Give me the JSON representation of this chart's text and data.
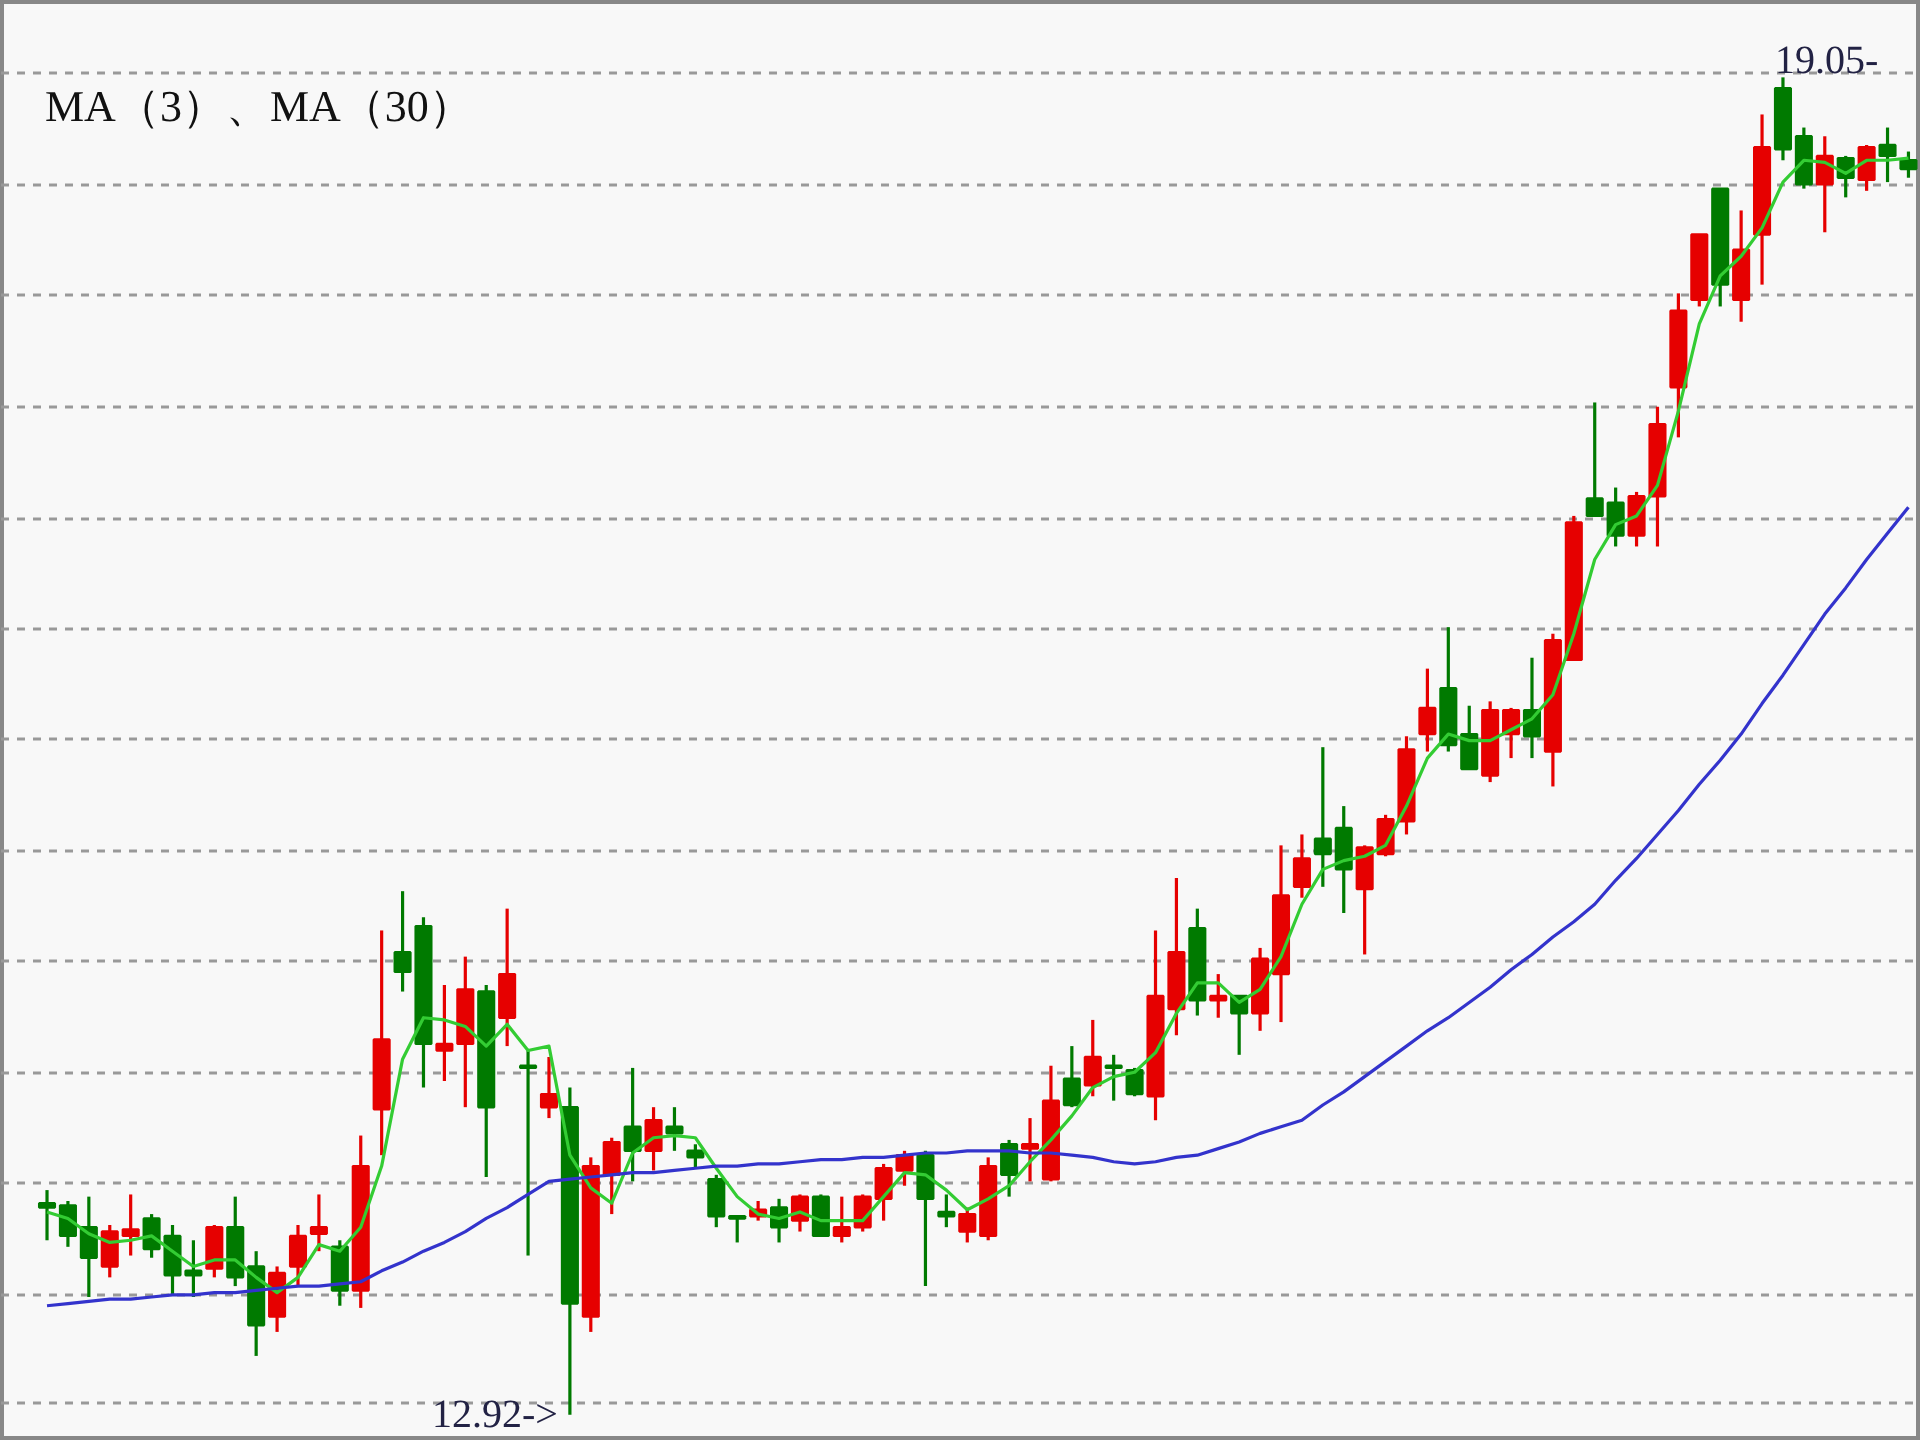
{
  "chart_data": {
    "type": "candlestick",
    "title": "MA（3）、MA（30）",
    "categories": [
      null,
      null,
      null,
      null,
      null,
      null,
      null,
      null,
      null,
      null,
      null,
      null,
      null,
      null,
      null,
      null,
      null,
      null,
      null,
      null,
      null,
      null,
      null,
      null,
      null,
      null,
      null,
      null,
      null,
      null,
      null,
      null,
      null,
      null,
      null,
      null,
      null,
      null,
      null,
      null,
      null,
      null,
      null,
      null,
      null,
      null,
      null,
      null,
      null,
      null,
      null,
      null,
      null,
      null,
      null,
      null,
      null,
      null,
      null,
      null,
      null,
      null,
      null,
      null,
      null,
      null,
      null,
      null,
      null,
      null,
      null,
      null,
      null,
      null,
      null,
      null,
      null,
      null,
      null,
      null,
      null,
      null,
      null,
      null,
      null,
      null,
      null,
      null,
      null,
      null
    ],
    "ohlc": [
      [
        13.89,
        13.95,
        13.72,
        13.87
      ],
      [
        13.88,
        13.9,
        13.69,
        13.74
      ],
      [
        13.78,
        13.92,
        13.46,
        13.64
      ],
      [
        13.6,
        13.79,
        13.55,
        13.76
      ],
      [
        13.74,
        13.93,
        13.65,
        13.77
      ],
      [
        13.82,
        13.84,
        13.64,
        13.68
      ],
      [
        13.74,
        13.79,
        13.47,
        13.56
      ],
      [
        13.58,
        13.72,
        13.46,
        13.56
      ],
      [
        13.59,
        13.79,
        13.55,
        13.78
      ],
      [
        13.78,
        13.92,
        13.51,
        13.55
      ],
      [
        13.6,
        13.67,
        13.19,
        13.33
      ],
      [
        13.37,
        13.6,
        13.3,
        13.57
      ],
      [
        13.6,
        13.79,
        13.51,
        13.74
      ],
      [
        13.75,
        13.93,
        13.67,
        13.78
      ],
      [
        13.69,
        13.72,
        13.42,
        13.49
      ],
      [
        13.49,
        14.2,
        13.41,
        14.06
      ],
      [
        14.32,
        15.14,
        14.11,
        14.64
      ],
      [
        15.04,
        15.32,
        14.86,
        14.95
      ],
      [
        15.16,
        15.2,
        14.42,
        14.62
      ],
      [
        14.59,
        14.89,
        14.45,
        14.62
      ],
      [
        14.62,
        15.02,
        14.33,
        14.87
      ],
      [
        14.86,
        14.89,
        14.01,
        14.33
      ],
      [
        14.74,
        15.24,
        14.61,
        14.94
      ],
      [
        14.52,
        14.59,
        13.65,
        14.51
      ],
      [
        14.33,
        14.56,
        14.28,
        14.39
      ],
      [
        14.33,
        14.42,
        12.92,
        13.43
      ],
      [
        13.37,
        14.1,
        13.3,
        14.06
      ],
      [
        14.02,
        14.19,
        13.84,
        14.17
      ],
      [
        14.24,
        14.51,
        13.99,
        14.13
      ],
      [
        14.13,
        14.33,
        14.04,
        14.27
      ],
      [
        14.24,
        14.33,
        14.13,
        14.21
      ],
      [
        14.13,
        14.16,
        14.05,
        14.1
      ],
      [
        14.0,
        14.02,
        13.78,
        13.83
      ],
      [
        13.83,
        13.83,
        13.71,
        13.82
      ],
      [
        13.83,
        13.9,
        13.81,
        13.86
      ],
      [
        13.87,
        13.91,
        13.71,
        13.78
      ],
      [
        13.81,
        13.93,
        13.76,
        13.92
      ],
      [
        13.92,
        13.93,
        13.74,
        13.74
      ],
      [
        13.74,
        13.92,
        13.71,
        13.78
      ],
      [
        13.78,
        13.93,
        13.76,
        13.92
      ],
      [
        13.91,
        14.07,
        13.81,
        14.05
      ],
      [
        14.04,
        14.13,
        13.97,
        14.11
      ],
      [
        14.11,
        14.13,
        13.51,
        13.91
      ],
      [
        13.85,
        13.93,
        13.78,
        13.83
      ],
      [
        13.76,
        13.87,
        13.71,
        13.84
      ],
      [
        13.74,
        14.1,
        13.72,
        14.06
      ],
      [
        14.16,
        14.18,
        13.92,
        14.02
      ],
      [
        14.14,
        14.28,
        13.99,
        14.16
      ],
      [
        14.0,
        14.52,
        13.99,
        14.36
      ],
      [
        14.46,
        14.61,
        14.33,
        14.34
      ],
      [
        14.43,
        14.73,
        14.38,
        14.56
      ],
      [
        14.52,
        14.57,
        14.36,
        14.51
      ],
      [
        14.5,
        14.51,
        14.38,
        14.39
      ],
      [
        14.38,
        15.14,
        14.27,
        14.84
      ],
      [
        14.78,
        15.38,
        14.66,
        15.04
      ],
      [
        15.15,
        15.24,
        14.75,
        14.82
      ],
      [
        14.82,
        14.94,
        14.74,
        14.84
      ],
      [
        14.84,
        14.84,
        14.57,
        14.76
      ],
      [
        14.76,
        15.06,
        14.68,
        15.01
      ],
      [
        14.94,
        15.53,
        14.72,
        15.3
      ],
      [
        15.34,
        15.58,
        15.29,
        15.47
      ],
      [
        15.56,
        15.98,
        15.34,
        15.49
      ],
      [
        15.61,
        15.71,
        15.22,
        15.42
      ],
      [
        15.33,
        15.53,
        15.03,
        15.52
      ],
      [
        15.49,
        15.67,
        15.48,
        15.65
      ],
      [
        15.64,
        16.03,
        15.58,
        15.97
      ],
      [
        16.04,
        16.34,
        15.96,
        16.16
      ],
      [
        16.25,
        16.53,
        15.96,
        15.99
      ],
      [
        16.04,
        16.17,
        15.88,
        15.88
      ],
      [
        15.85,
        16.19,
        15.82,
        16.15
      ],
      [
        16.04,
        16.16,
        15.93,
        16.15
      ],
      [
        16.15,
        16.39,
        15.93,
        16.03
      ],
      [
        15.96,
        16.5,
        15.8,
        16.47
      ],
      [
        16.38,
        17.04,
        16.38,
        17.01
      ],
      [
        17.12,
        17.56,
        17.04,
        17.04
      ],
      [
        17.1,
        17.17,
        16.9,
        16.95
      ],
      [
        16.95,
        17.15,
        16.9,
        17.13
      ],
      [
        17.13,
        17.54,
        16.9,
        17.46
      ],
      [
        17.63,
        18.06,
        17.4,
        17.98
      ],
      [
        18.03,
        18.33,
        18.0,
        18.33
      ],
      [
        18.54,
        18.54,
        18.0,
        18.1
      ],
      [
        18.03,
        18.44,
        17.93,
        18.26
      ],
      [
        18.33,
        18.88,
        18.1,
        18.73
      ],
      [
        19.0,
        19.05,
        18.67,
        18.72
      ],
      [
        18.78,
        18.82,
        18.54,
        18.56
      ],
      [
        18.56,
        18.78,
        18.34,
        18.69
      ],
      [
        18.68,
        18.69,
        18.5,
        18.59
      ],
      [
        18.58,
        18.74,
        18.53,
        18.73
      ],
      [
        18.74,
        18.82,
        18.57,
        18.69
      ],
      [
        18.67,
        18.71,
        18.59,
        18.63
      ]
    ],
    "colors": [
      "#007a00",
      "#007a00",
      "#007a00",
      "#e60000",
      "#e60000",
      "#007a00",
      "#007a00",
      "#007a00",
      "#e60000",
      "#007a00",
      "#007a00",
      "#e60000",
      "#e60000",
      "#e60000",
      "#007a00",
      "#e60000",
      "#e60000",
      "#007a00",
      "#007a00",
      "#e60000",
      "#e60000",
      "#007a00",
      "#e60000",
      "#007a00",
      "#e60000",
      "#007a00",
      "#e60000",
      "#e60000",
      "#007a00",
      "#e60000",
      "#007a00",
      "#007a00",
      "#007a00",
      "#007a00",
      "#e60000",
      "#007a00",
      "#e60000",
      "#007a00",
      "#e60000",
      "#e60000",
      "#e60000",
      "#e60000",
      "#007a00",
      "#007a00",
      "#e60000",
      "#e60000",
      "#007a00",
      "#e60000",
      "#e60000",
      "#007a00",
      "#e60000",
      "#007a00",
      "#007a00",
      "#e60000",
      "#e60000",
      "#007a00",
      "#e60000",
      "#007a00",
      "#e60000",
      "#e60000",
      "#e60000",
      "#007a00",
      "#007a00",
      "#e60000",
      "#e60000",
      "#e60000",
      "#e60000",
      "#007a00",
      "#007a00",
      "#e60000",
      "#e60000",
      "#007a00",
      "#e60000",
      "#e60000",
      "#007a00",
      "#007a00",
      "#e60000",
      "#e60000",
      "#e60000",
      "#e60000",
      "#007a00",
      "#e60000",
      "#e60000",
      "#007a00",
      "#007a00",
      "#e60000",
      "#007a00",
      "#e60000",
      "#007a00",
      "#007a00"
    ],
    "series": [
      {
        "type": "line",
        "color": "#33cc33",
        "values": [
          13.85,
          13.82,
          13.75,
          13.71,
          13.72,
          13.74,
          13.67,
          13.6,
          13.63,
          13.63,
          13.55,
          13.48,
          13.55,
          13.7,
          13.67,
          13.78,
          14.06,
          14.55,
          14.74,
          14.73,
          14.7,
          14.61,
          14.71,
          14.59,
          14.61,
          14.11,
          13.96,
          13.89,
          14.12,
          14.19,
          14.2,
          14.19,
          14.05,
          13.92,
          13.84,
          13.82,
          13.85,
          13.81,
          13.81,
          13.81,
          13.92,
          14.03,
          14.02,
          13.95,
          13.86,
          13.91,
          13.97,
          14.08,
          14.18,
          14.29,
          14.42,
          14.47,
          14.49,
          14.58,
          14.76,
          14.9,
          14.9,
          14.81,
          14.87,
          15.02,
          15.26,
          15.42,
          15.46,
          15.48,
          15.53,
          15.71,
          15.93,
          16.04,
          16.01,
          16.01,
          16.06,
          16.11,
          16.22,
          16.5,
          16.84,
          17.0,
          17.04,
          17.18,
          17.52,
          17.92,
          18.14,
          18.23,
          18.36,
          18.57,
          18.67,
          18.66,
          18.61,
          18.67,
          18.67,
          18.68
        ]
      },
      {
        "type": "line",
        "color": "#3333cc",
        "values": [
          13.42,
          13.43,
          13.44,
          13.45,
          13.45,
          13.46,
          13.47,
          13.47,
          13.48,
          13.48,
          13.49,
          13.5,
          13.51,
          13.51,
          13.52,
          13.53,
          13.58,
          13.62,
          13.67,
          13.71,
          13.76,
          13.82,
          13.87,
          13.93,
          13.99,
          14.0,
          14.01,
          14.02,
          14.03,
          14.03,
          14.04,
          14.05,
          14.06,
          14.06,
          14.07,
          14.07,
          14.08,
          14.09,
          14.09,
          14.1,
          14.1,
          14.11,
          14.12,
          14.12,
          14.13,
          14.13,
          14.13,
          14.12,
          14.12,
          14.11,
          14.1,
          14.08,
          14.07,
          14.08,
          14.1,
          14.11,
          14.14,
          14.17,
          14.21,
          14.24,
          14.27,
          14.34,
          14.4,
          14.47,
          14.54,
          14.61,
          14.68,
          14.74,
          14.81,
          14.88,
          14.96,
          15.03,
          15.11,
          15.18,
          15.26,
          15.37,
          15.47,
          15.58,
          15.69,
          15.81,
          15.92,
          16.04,
          16.18,
          16.31,
          16.45,
          16.59,
          16.71,
          16.84,
          16.96,
          17.08
        ]
      }
    ],
    "ylim": [
      12.8,
      19.4
    ],
    "yticks": [
      {
        "value": 12.97,
        "label": null
      },
      {
        "value": 13.47,
        "label": null
      },
      {
        "value": 13.98,
        "label": null
      },
      {
        "value": 14.49,
        "label": null
      },
      {
        "value": 15.0,
        "label": null
      },
      {
        "value": 15.5,
        "label": null
      },
      {
        "value": 16.02,
        "label": null
      },
      {
        "value": 16.52,
        "label": null
      },
      {
        "value": 17.03,
        "label": null
      },
      {
        "value": 17.54,
        "label": null
      },
      {
        "value": 18.05,
        "label": null
      },
      {
        "value": 18.56,
        "label": null
      },
      {
        "value": 19.07,
        "label": null
      }
    ],
    "grid": "y",
    "tick_labels": false,
    "marker": "none",
    "line_style": "solid",
    "annotations": [
      "19.05-",
      "12.92->"
    ]
  }
}
